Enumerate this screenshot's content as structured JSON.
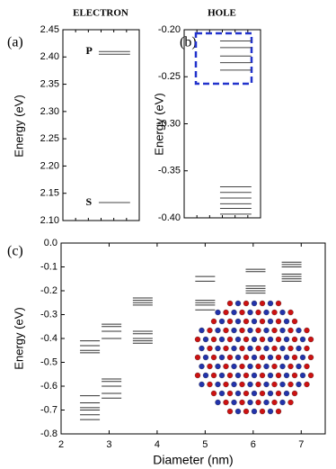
{
  "chart_data": [
    {
      "type": "levels",
      "title": "ELECTRON",
      "panel": "(a)",
      "ylabel": "Energy (eV)",
      "ylim": [
        2.1,
        2.45
      ],
      "yticks": [
        {
          "value": 2.1,
          "label": "2.10"
        },
        2.15,
        {
          "value": 2.2,
          "label": "2.20"
        },
        2.25,
        {
          "value": 2.3,
          "label": "2.30"
        },
        2.35,
        {
          "value": 2.4,
          "label": "2.40"
        },
        2.45
      ],
      "values": [
        2.41,
        2.405,
        2.133
      ],
      "annotations": [
        "P",
        "S"
      ]
    },
    {
      "type": "levels",
      "title": "HOLE",
      "panel": "(b)",
      "ylabel": "Energy (eV)",
      "ylim": [
        -0.4,
        -0.2
      ],
      "yticks": [
        {
          "value": -0.2,
          "label": "-0.20"
        },
        -0.25,
        {
          "value": -0.3,
          "label": "-0.30"
        },
        -0.35,
        {
          "value": -0.4,
          "label": "-0.40"
        }
      ],
      "values": [
        -0.212,
        -0.219,
        -0.228,
        -0.235,
        -0.243,
        -0.367,
        -0.373,
        -0.379,
        -0.385,
        -0.39,
        -0.396
      ]
    },
    {
      "type": "size-levels",
      "panel": "(c)",
      "ylabel": "Energy (eV)",
      "xlabel": "Diameter (nm)",
      "xlim": [
        2,
        7.5
      ],
      "xticks": [
        2,
        3,
        4,
        5,
        6,
        7
      ],
      "ylim": [
        -0.8,
        0
      ],
      "yticks": [
        {
          "value": 0,
          "label": "0.0"
        },
        -0.1,
        -0.2,
        -0.3,
        -0.4,
        -0.5,
        -0.6,
        -0.7,
        -0.8
      ],
      "groups": [
        {
          "x": 2.6,
          "values": [
            -0.41,
            -0.43,
            -0.45,
            -0.46,
            -0.64,
            -0.67,
            -0.69,
            -0.7,
            -0.72,
            -0.74
          ]
        },
        {
          "x": 3.05,
          "values": [
            -0.34,
            -0.35,
            -0.37,
            -0.4,
            -0.57,
            -0.58,
            -0.6,
            -0.63,
            -0.65
          ]
        },
        {
          "x": 3.7,
          "values": [
            -0.23,
            -0.24,
            -0.25,
            -0.26,
            -0.37,
            -0.38,
            -0.4,
            -0.41,
            -0.42
          ]
        },
        {
          "x": 5.0,
          "values": [
            -0.14,
            -0.16,
            -0.24,
            -0.25,
            -0.26,
            -0.28
          ]
        },
        {
          "x": 6.05,
          "values": [
            -0.11,
            -0.12,
            -0.18,
            -0.19,
            -0.2,
            -0.21
          ]
        },
        {
          "x": 6.8,
          "values": [
            -0.08,
            -0.09,
            -0.1,
            -0.13,
            -0.14,
            -0.15,
            -0.16
          ]
        }
      ]
    }
  ]
}
